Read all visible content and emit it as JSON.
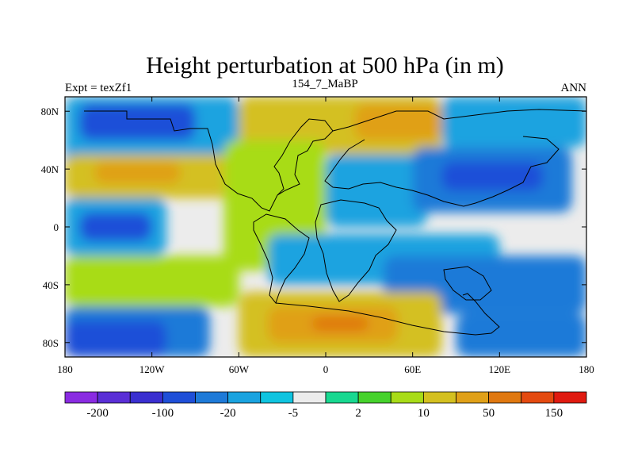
{
  "chart_data": {
    "type": "heatmap",
    "title": "Height perturbation at 500 hPa (in m)",
    "left_label": "Expt = texZf1",
    "center_label": "154_7_MaBP",
    "right_label": "ANN",
    "x_range": [
      -180,
      180
    ],
    "y_range": [
      -90,
      90
    ],
    "x_ticks": [
      {
        "value": -180,
        "label": "180"
      },
      {
        "value": -120,
        "label": "120W"
      },
      {
        "value": -60,
        "label": "60W"
      },
      {
        "value": 0,
        "label": "0"
      },
      {
        "value": 60,
        "label": "60E"
      },
      {
        "value": 120,
        "label": "120E"
      },
      {
        "value": 180,
        "label": "180"
      }
    ],
    "y_ticks": [
      {
        "value": 80,
        "label": "80N"
      },
      {
        "value": 40,
        "label": "40N"
      },
      {
        "value": 0,
        "label": "0"
      },
      {
        "value": -40,
        "label": "40S"
      },
      {
        "value": -80,
        "label": "80S"
      }
    ],
    "colorbar": {
      "colors": [
        "#8a2be2",
        "#5a2fd6",
        "#3a2fd0",
        "#1f4fd8",
        "#1e7ad8",
        "#1aa3e0",
        "#10c4e0",
        "#ececec",
        "#18d890",
        "#46d22c",
        "#a8dc18",
        "#d4c020",
        "#e0a018",
        "#e07810",
        "#e44a10",
        "#e01a10"
      ],
      "labels": [
        {
          "after_box": 1,
          "text": "-200"
        },
        {
          "after_box": 3,
          "text": "-100"
        },
        {
          "after_box": 5,
          "text": "-20"
        },
        {
          "after_box": 7,
          "text": "-5"
        },
        {
          "after_box": 9,
          "text": "2"
        },
        {
          "after_box": 11,
          "text": "10"
        },
        {
          "after_box": 13,
          "text": "50"
        },
        {
          "after_box": 15,
          "text": "150"
        }
      ]
    },
    "field_regions": [
      {
        "lon": [
          -180,
          180
        ],
        "lat": [
          -90,
          90
        ],
        "value": "#ececec"
      },
      {
        "lon": [
          -180,
          -60
        ],
        "lat": [
          40,
          90
        ],
        "value": "#1aa3e0"
      },
      {
        "lon": [
          -170,
          -90
        ],
        "lat": [
          60,
          85
        ],
        "value": "#1f4fd8"
      },
      {
        "lon": [
          -60,
          80
        ],
        "lat": [
          50,
          90
        ],
        "value": "#d4c020"
      },
      {
        "lon": [
          20,
          80
        ],
        "lat": [
          60,
          85
        ],
        "value": "#e0a018"
      },
      {
        "lon": [
          80,
          180
        ],
        "lat": [
          55,
          90
        ],
        "value": "#1aa3e0"
      },
      {
        "lon": [
          -180,
          -60
        ],
        "lat": [
          20,
          50
        ],
        "value": "#d4c020"
      },
      {
        "lon": [
          -160,
          -100
        ],
        "lat": [
          30,
          45
        ],
        "value": "#e0a018"
      },
      {
        "lon": [
          -70,
          0
        ],
        "lat": [
          -30,
          60
        ],
        "value": "#a8dc18"
      },
      {
        "lon": [
          0,
          70
        ],
        "lat": [
          0,
          50
        ],
        "value": "#1aa3e0"
      },
      {
        "lon": [
          60,
          170
        ],
        "lat": [
          10,
          55
        ],
        "value": "#1e7ad8"
      },
      {
        "lon": [
          80,
          150
        ],
        "lat": [
          25,
          45
        ],
        "value": "#1f4fd8"
      },
      {
        "lon": [
          -180,
          -110
        ],
        "lat": [
          -20,
          20
        ],
        "value": "#1aa3e0"
      },
      {
        "lon": [
          -170,
          -120
        ],
        "lat": [
          -10,
          10
        ],
        "value": "#1f4fd8"
      },
      {
        "lon": [
          -180,
          -60
        ],
        "lat": [
          -55,
          -20
        ],
        "value": "#a8dc18"
      },
      {
        "lon": [
          -40,
          120
        ],
        "lat": [
          -40,
          -5
        ],
        "value": "#1aa3e0"
      },
      {
        "lon": [
          40,
          180
        ],
        "lat": [
          -60,
          -20
        ],
        "value": "#1e7ad8"
      },
      {
        "lon": [
          -180,
          -80
        ],
        "lat": [
          -90,
          -55
        ],
        "value": "#1e7ad8"
      },
      {
        "lon": [
          -180,
          -110
        ],
        "lat": [
          -90,
          -65
        ],
        "value": "#1f4fd8"
      },
      {
        "lon": [
          -60,
          80
        ],
        "lat": [
          -90,
          -45
        ],
        "value": "#d4c020"
      },
      {
        "lon": [
          -40,
          50
        ],
        "lat": [
          -80,
          -55
        ],
        "value": "#e0a018"
      },
      {
        "lon": [
          -10,
          30
        ],
        "lat": [
          -72,
          -62
        ],
        "value": "#e07810"
      },
      {
        "lon": [
          90,
          180
        ],
        "lat": [
          -90,
          -60
        ],
        "value": "#1e7ad8"
      }
    ]
  }
}
